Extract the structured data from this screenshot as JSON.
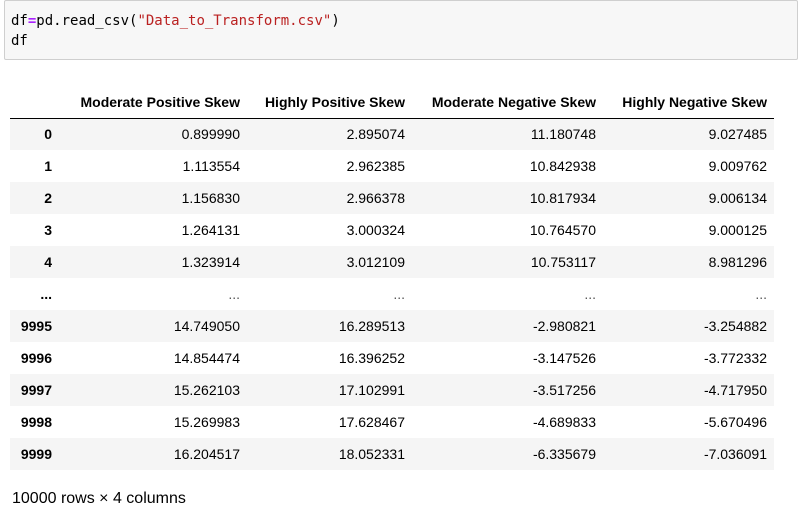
{
  "code_cell": {
    "line1_var": "df",
    "line1_op": "=",
    "line1_call": "pd.read_csv(",
    "line1_str": "\"Data_to_Transform.csv\"",
    "line1_close": ")",
    "line2": "df"
  },
  "table": {
    "index_header": "",
    "columns": [
      "Moderate Positive Skew",
      "Highly Positive Skew",
      "Moderate Negative Skew",
      "Highly Negative Skew"
    ],
    "rows": [
      {
        "index": "0",
        "values": [
          "0.899990",
          "2.895074",
          "11.180748",
          "9.027485"
        ]
      },
      {
        "index": "1",
        "values": [
          "1.113554",
          "2.962385",
          "10.842938",
          "9.009762"
        ]
      },
      {
        "index": "2",
        "values": [
          "1.156830",
          "2.966378",
          "10.817934",
          "9.006134"
        ]
      },
      {
        "index": "3",
        "values": [
          "1.264131",
          "3.000324",
          "10.764570",
          "9.000125"
        ]
      },
      {
        "index": "4",
        "values": [
          "1.323914",
          "3.012109",
          "10.753117",
          "8.981296"
        ]
      },
      {
        "index": "...",
        "values": [
          "...",
          "...",
          "...",
          "..."
        ]
      },
      {
        "index": "9995",
        "values": [
          "14.749050",
          "16.289513",
          "-2.980821",
          "-3.254882"
        ]
      },
      {
        "index": "9996",
        "values": [
          "14.854474",
          "16.396252",
          "-3.147526",
          "-3.772332"
        ]
      },
      {
        "index": "9997",
        "values": [
          "15.262103",
          "17.102991",
          "-3.517256",
          "-4.717950"
        ]
      },
      {
        "index": "9998",
        "values": [
          "15.269983",
          "17.628467",
          "-4.689833",
          "-5.670496"
        ]
      },
      {
        "index": "9999",
        "values": [
          "16.204517",
          "18.052331",
          "-6.335679",
          "-7.036091"
        ]
      }
    ]
  },
  "footer": {
    "shape_text": "10000 rows × 4 columns"
  }
}
